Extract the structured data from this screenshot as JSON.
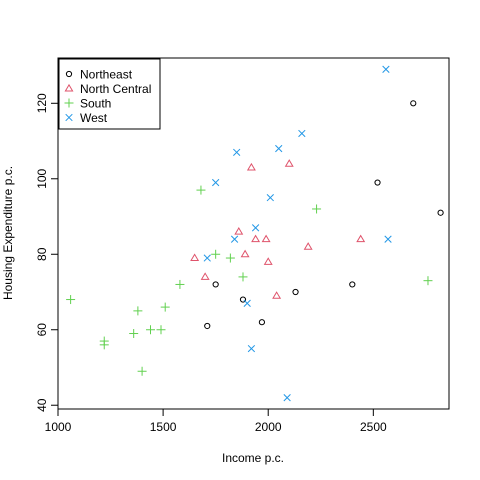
{
  "chart_data": {
    "type": "scatter",
    "title": "",
    "xlabel": "Income p.c.",
    "ylabel": "Housing Expenditure p.c.",
    "xlim": [
      1000,
      2860
    ],
    "ylim": [
      39,
      132
    ],
    "xticks": [
      1000,
      1500,
      2000,
      2500
    ],
    "yticks": [
      40,
      60,
      80,
      100,
      120
    ],
    "grid": false,
    "legend_position": "top-left",
    "series": [
      {
        "name": "Northeast",
        "marker": "circle",
        "color": "#000000",
        "points": [
          [
            1880,
            68
          ],
          [
            1710,
            61
          ],
          [
            1750,
            72
          ],
          [
            1970,
            62
          ],
          [
            2130,
            70
          ],
          [
            2400,
            72
          ],
          [
            2520,
            99
          ],
          [
            2690,
            120
          ],
          [
            2820,
            91
          ]
        ]
      },
      {
        "name": "North Central",
        "marker": "triangle",
        "color": "#DF536B",
        "points": [
          [
            1650,
            79
          ],
          [
            1700,
            74
          ],
          [
            1860,
            86
          ],
          [
            1890,
            80
          ],
          [
            1920,
            103
          ],
          [
            1940,
            84
          ],
          [
            1990,
            84
          ],
          [
            2000,
            78
          ],
          [
            2040,
            69
          ],
          [
            2100,
            104
          ],
          [
            2190,
            82
          ],
          [
            2440,
            84
          ]
        ]
      },
      {
        "name": "South",
        "marker": "plus",
        "color": "#61D04F",
        "points": [
          [
            1060,
            68
          ],
          [
            1220,
            57
          ],
          [
            1220,
            56
          ],
          [
            1360,
            59
          ],
          [
            1380,
            65
          ],
          [
            1400,
            49
          ],
          [
            1440,
            60
          ],
          [
            1490,
            60
          ],
          [
            1510,
            66
          ],
          [
            1580,
            72
          ],
          [
            1680,
            97
          ],
          [
            1750,
            80
          ],
          [
            1820,
            79
          ],
          [
            1880,
            74
          ],
          [
            2230,
            92
          ],
          [
            2760,
            73
          ]
        ]
      },
      {
        "name": "West",
        "marker": "x",
        "color": "#2297E6",
        "points": [
          [
            1710,
            79
          ],
          [
            1750,
            99
          ],
          [
            1840,
            84
          ],
          [
            1850,
            107
          ],
          [
            1900,
            67
          ],
          [
            1920,
            55
          ],
          [
            1940,
            87
          ],
          [
            2010,
            95
          ],
          [
            2050,
            108
          ],
          [
            2090,
            42
          ],
          [
            2160,
            112
          ],
          [
            2560,
            129
          ],
          [
            2570,
            84
          ]
        ]
      }
    ]
  }
}
